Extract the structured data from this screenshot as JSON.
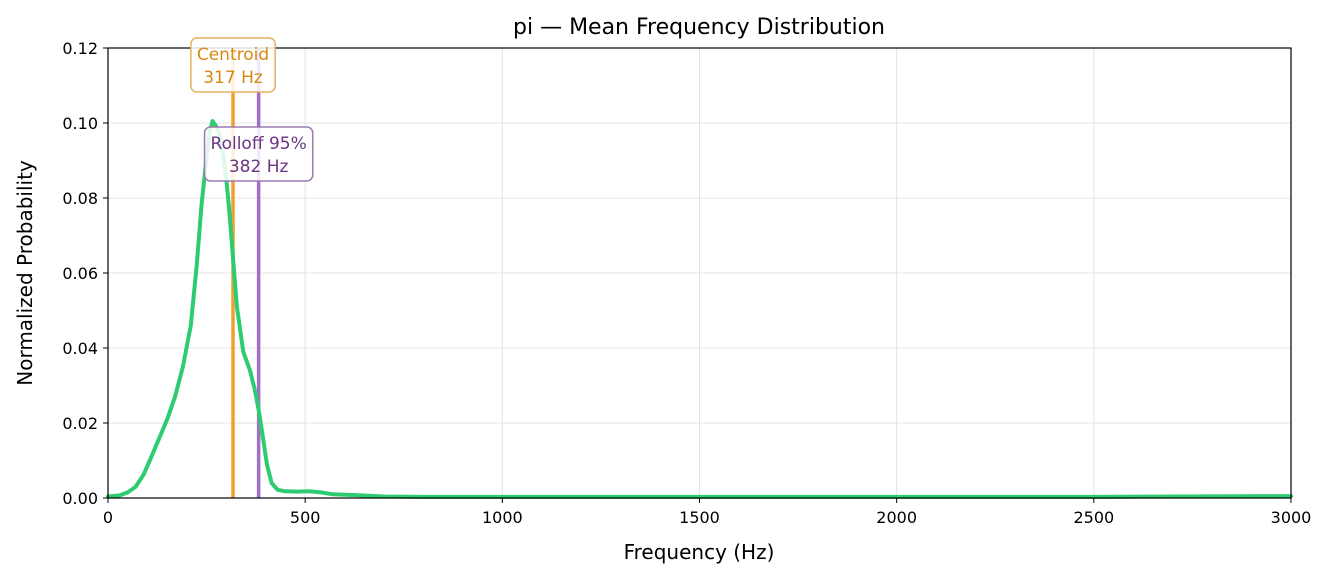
{
  "chart_data": {
    "type": "line",
    "title": "pi  —  Mean Frequency Distribution",
    "xlabel": "Frequency (Hz)",
    "ylabel": "Normalized Probability",
    "xlim": [
      0,
      3000
    ],
    "ylim": [
      0,
      0.12
    ],
    "grid": true,
    "x_ticks": [
      0,
      500,
      1000,
      1500,
      2000,
      2500,
      3000
    ],
    "x_tick_labels": [
      "0",
      "500",
      "1000",
      "1500",
      "2000",
      "2500",
      "3000"
    ],
    "y_ticks": [
      0,
      0.02,
      0.04,
      0.06,
      0.08,
      0.1,
      0.12
    ],
    "y_tick_labels": [
      "0.00",
      "0.02",
      "0.04",
      "0.06",
      "0.08",
      "0.10",
      "0.12"
    ],
    "series": [
      {
        "color": "#2ecc71",
        "points": [
          [
            0,
            0.0004
          ],
          [
            30,
            0.0007
          ],
          [
            50,
            0.0015
          ],
          [
            70,
            0.003
          ],
          [
            90,
            0.0062
          ],
          [
            110,
            0.011
          ],
          [
            130,
            0.016
          ],
          [
            150,
            0.021
          ],
          [
            170,
            0.027
          ],
          [
            190,
            0.035
          ],
          [
            210,
            0.046
          ],
          [
            225,
            0.062
          ],
          [
            237,
            0.078
          ],
          [
            247,
            0.088
          ],
          [
            257,
            0.097
          ],
          [
            265,
            0.1005
          ],
          [
            275,
            0.099
          ],
          [
            283,
            0.097
          ],
          [
            292,
            0.092
          ],
          [
            300,
            0.085
          ],
          [
            308,
            0.076
          ],
          [
            317,
            0.064
          ],
          [
            327,
            0.051
          ],
          [
            343,
            0.039
          ],
          [
            360,
            0.034
          ],
          [
            372,
            0.029
          ],
          [
            383,
            0.023
          ],
          [
            393,
            0.016
          ],
          [
            403,
            0.009
          ],
          [
            415,
            0.004
          ],
          [
            430,
            0.0022
          ],
          [
            450,
            0.0018
          ],
          [
            480,
            0.0017
          ],
          [
            510,
            0.0018
          ],
          [
            540,
            0.0015
          ],
          [
            570,
            0.001
          ],
          [
            620,
            0.0008
          ],
          [
            700,
            0.0004
          ],
          [
            800,
            0.0003
          ],
          [
            1000,
            0.0003
          ],
          [
            1500,
            0.0003
          ],
          [
            2000,
            0.0003
          ],
          [
            2500,
            0.0003
          ],
          [
            2700,
            0.0004
          ],
          [
            3000,
            0.0005
          ]
        ]
      }
    ],
    "markers": [
      {
        "label": "Centroid",
        "value_label": "317 Hz",
        "x": 317,
        "color": "#f0a030",
        "text_color": "#d68910",
        "border_color": "#e6b060"
      },
      {
        "label": "Rolloff 95%",
        "value_label": "382 Hz",
        "x": 382,
        "color": "#a070c8",
        "text_color": "#6c3483",
        "border_color": "#9b7bb0"
      }
    ]
  }
}
